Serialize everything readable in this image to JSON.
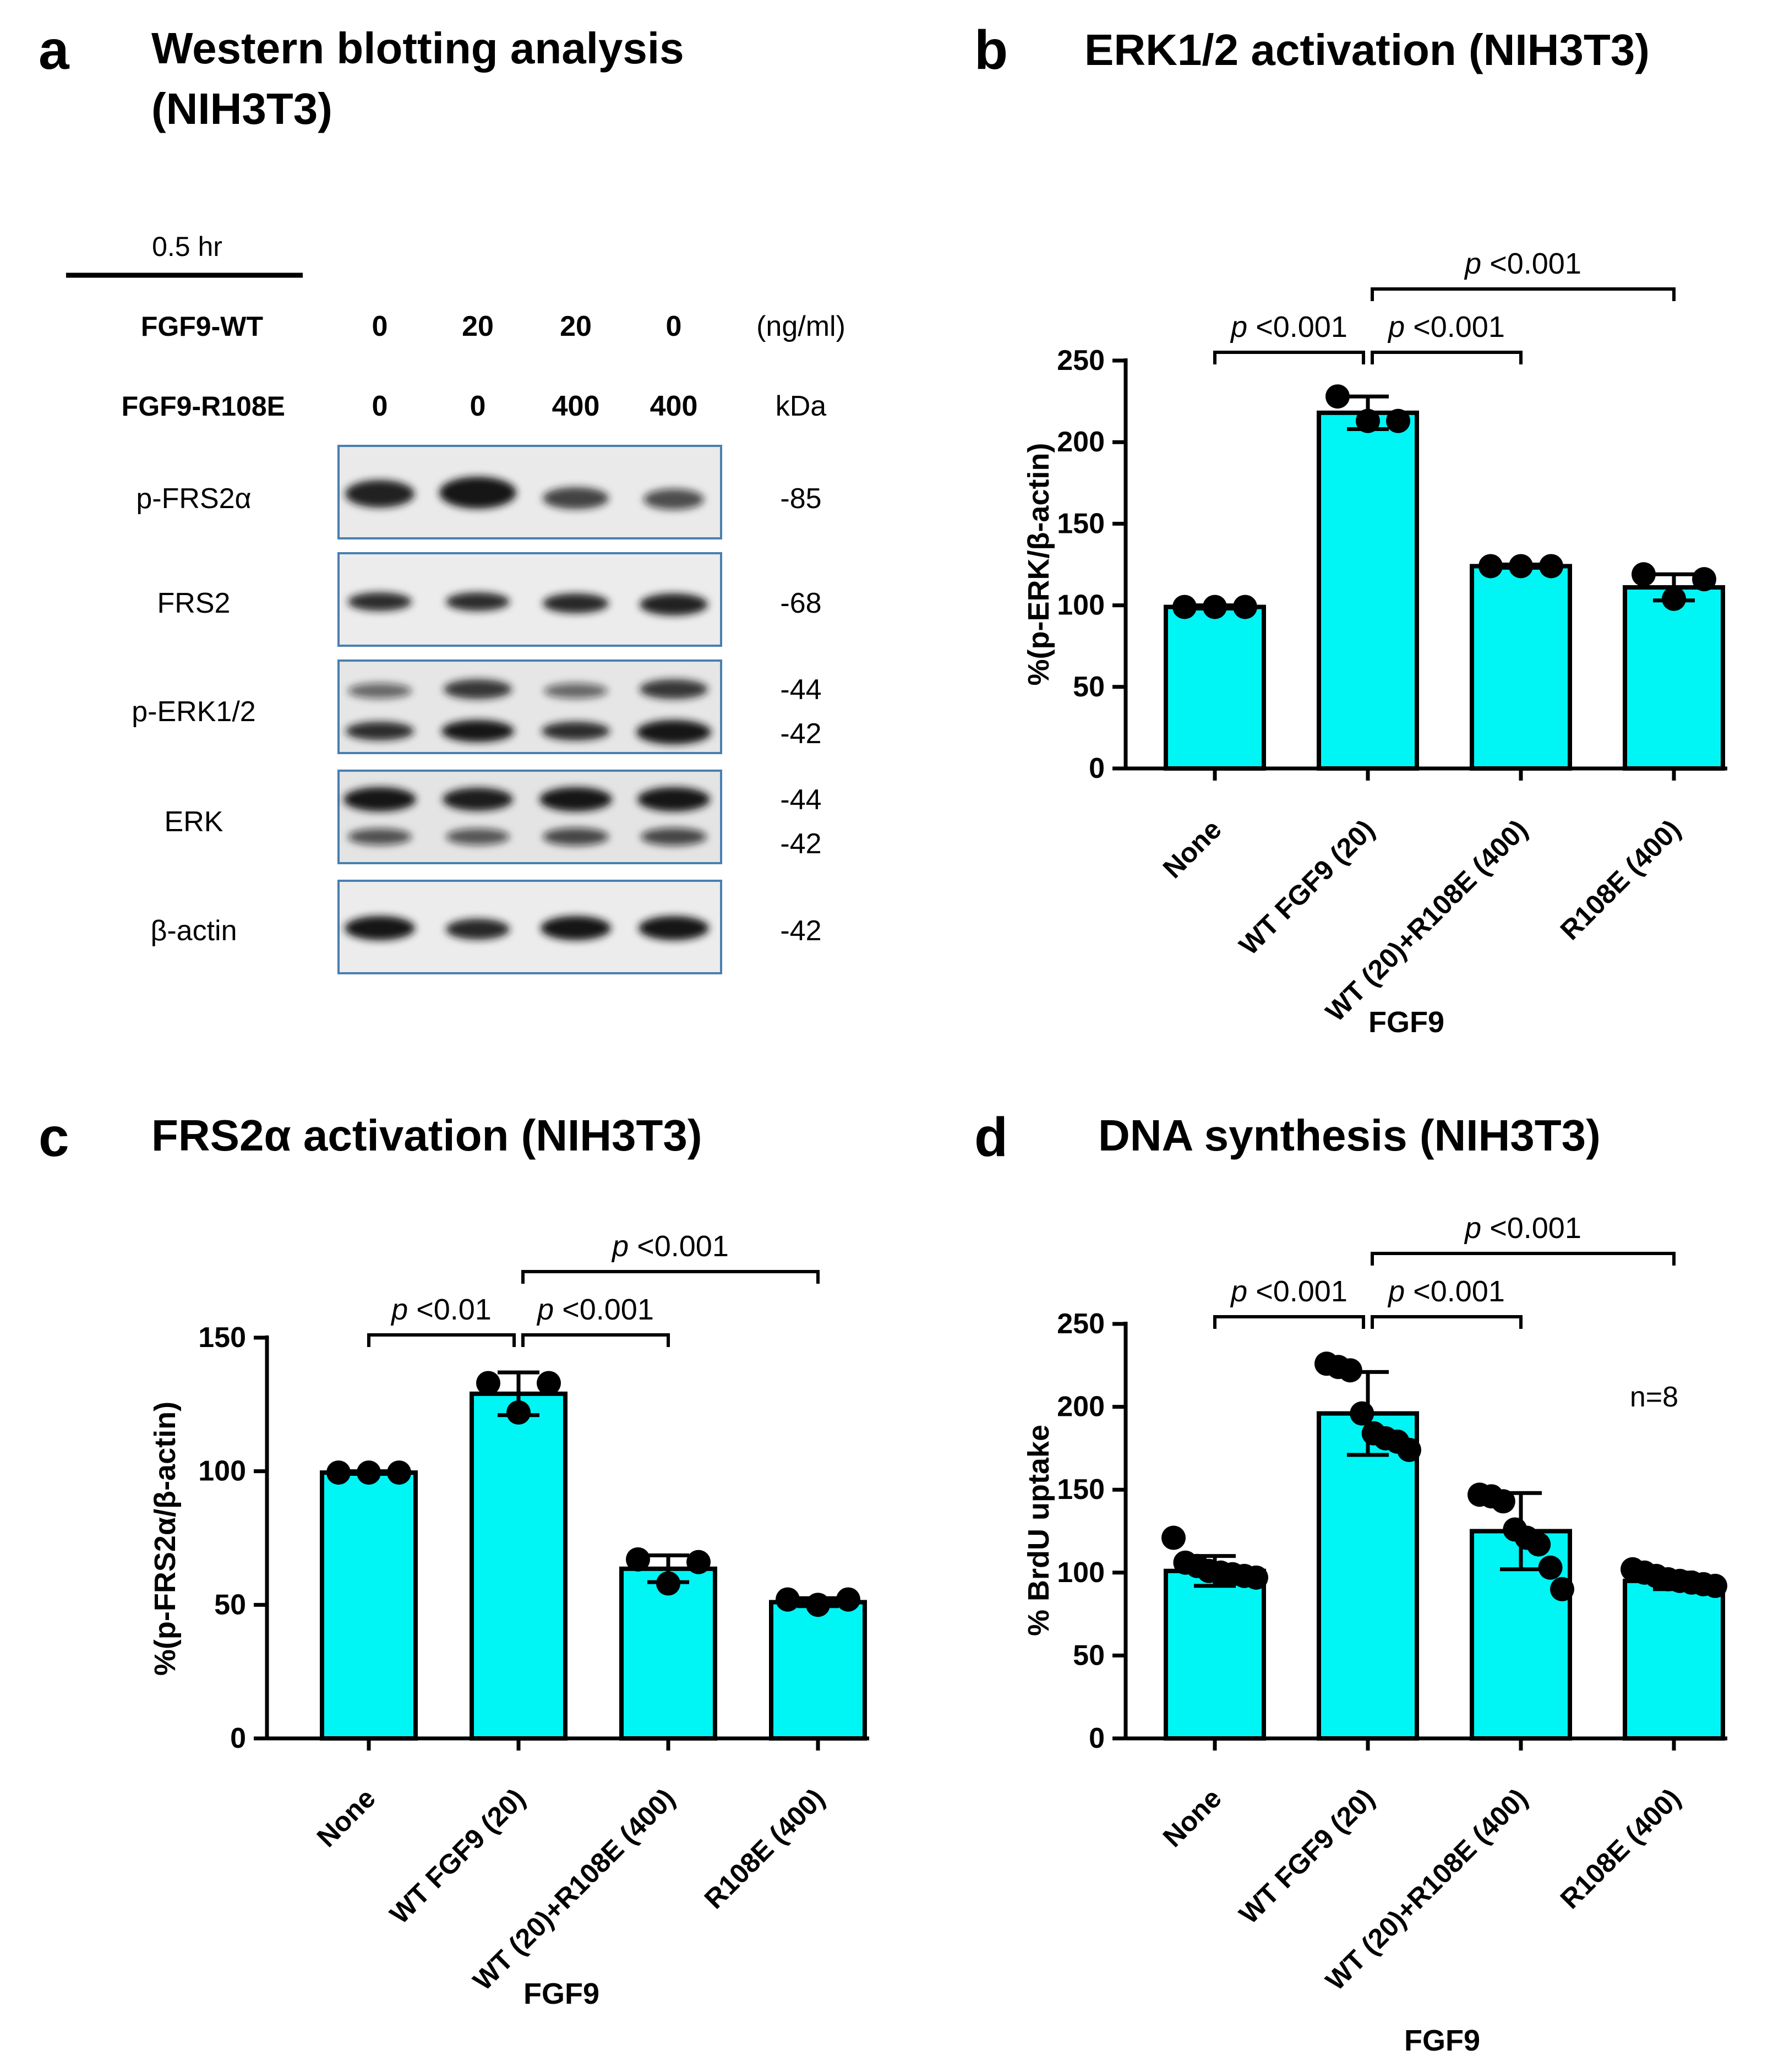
{
  "panels": {
    "a": {
      "letter": "a",
      "title_line1": "Western blotting analysis",
      "title_line2": "(NIH3T3)",
      "time_label": "0.5 hr",
      "row1_label": "FGF9-WT",
      "row1_values": [
        "0",
        "20",
        "20",
        "0"
      ],
      "row1_unit": "(ng/ml)",
      "row2_label": "FGF9-R108E",
      "row2_values": [
        "0",
        "0",
        "400",
        "400"
      ],
      "row2_unit": "kDa",
      "blots": [
        {
          "label": "p-FRS2α",
          "kda": [
            "-85"
          ]
        },
        {
          "label": "FRS2",
          "kda": [
            "-68"
          ]
        },
        {
          "label": "p-ERK1/2",
          "kda": [
            "-44",
            "-42"
          ]
        },
        {
          "label": "ERK",
          "kda": [
            "-44",
            "-42"
          ]
        },
        {
          "label": "β-actin",
          "kda": [
            "-42"
          ]
        }
      ],
      "colors": {
        "blot_border": "#4a7fb0",
        "band": "#151515"
      }
    },
    "b": {
      "letter": "b"
    },
    "c": {
      "letter": "c"
    },
    "d": {
      "letter": "d",
      "annotation": "n=8"
    }
  },
  "chart_data": [
    {
      "panel": "b",
      "type": "bar",
      "title": "ERK1/2 activation (NIH3T3)",
      "xlabel": "FGF9",
      "ylabel": "%(p-ERK/β-actin)",
      "categories": [
        "None",
        "WT FGF9 (20)",
        "WT (20)+R108E (400)",
        "R108E (400)"
      ],
      "values": [
        99,
        218,
        124,
        111
      ],
      "error": [
        1,
        10,
        1,
        8
      ],
      "points": [
        [
          99,
          99,
          99
        ],
        [
          228,
          213,
          213
        ],
        [
          124,
          124,
          124
        ],
        [
          119,
          104,
          116
        ]
      ],
      "yticks": [
        0,
        50,
        100,
        150,
        200,
        250
      ],
      "ylim": [
        0,
        250
      ],
      "significance": [
        {
          "from": 0,
          "to": 1,
          "label_p": "p",
          "label_rest": " <0.001",
          "level": 0
        },
        {
          "from": 1,
          "to": 2,
          "label_p": "p",
          "label_rest": " <0.001",
          "level": 0
        },
        {
          "from": 1,
          "to": 3,
          "label_p": "p",
          "label_rest": " <0.001",
          "level": 1
        }
      ],
      "colors": {
        "bar": "#00f5f5",
        "edge": "#000000",
        "point": "#000000"
      }
    },
    {
      "panel": "c",
      "type": "bar",
      "title": "FRS2α activation (NIH3T3)",
      "xlabel": "FGF9",
      "ylabel": "%(p-FRS2α/β-actin)",
      "categories": [
        "None",
        "WT FGF9 (20)",
        "WT (20)+R108E (400)",
        "R108E (400)"
      ],
      "values": [
        99.5,
        129,
        63.5,
        51
      ],
      "error": [
        0.5,
        8,
        5,
        1.5
      ],
      "points": [
        [
          99.5,
          99.5,
          99.5
        ],
        [
          133,
          122,
          133
        ],
        [
          67,
          58,
          66
        ],
        [
          52,
          50,
          52
        ]
      ],
      "yticks": [
        0,
        50,
        100,
        150
      ],
      "ylim": [
        0,
        150
      ],
      "significance": [
        {
          "from": 0,
          "to": 1,
          "label_p": "p",
          "label_rest": " <0.01",
          "level": 0
        },
        {
          "from": 1,
          "to": 2,
          "label_p": "p",
          "label_rest": " <0.001",
          "level": 0
        },
        {
          "from": 1,
          "to": 3,
          "label_p": "p",
          "label_rest": " <0.001",
          "level": 1
        }
      ],
      "colors": {
        "bar": "#00f5f5",
        "edge": "#000000",
        "point": "#000000"
      }
    },
    {
      "panel": "d",
      "type": "bar",
      "title": "DNA synthesis (NIH3T3)",
      "xlabel": "FGF9",
      "ylabel": "% BrdU uptake",
      "categories": [
        "None",
        "WT FGF9 (20)",
        "WT (20)+R108E (400)",
        "R108E (400)"
      ],
      "values": [
        101,
        196,
        125,
        95
      ],
      "error": [
        9,
        25,
        23,
        5
      ],
      "points": [
        [
          121,
          106,
          104,
          101,
          100,
          99,
          98,
          97
        ],
        [
          226,
          224,
          222,
          196,
          184,
          181,
          179,
          174
        ],
        [
          147,
          146,
          143,
          126,
          121,
          117,
          103,
          90
        ],
        [
          102,
          100,
          98,
          96,
          95,
          94,
          93,
          92
        ]
      ],
      "yticks": [
        0,
        50,
        100,
        150,
        200,
        250
      ],
      "ylim": [
        0,
        250
      ],
      "significance": [
        {
          "from": 0,
          "to": 1,
          "label_p": "p",
          "label_rest": " <0.001",
          "level": 0
        },
        {
          "from": 1,
          "to": 2,
          "label_p": "p",
          "label_rest": " <0.001",
          "level": 0
        },
        {
          "from": 1,
          "to": 3,
          "label_p": "p",
          "label_rest": " <0.001",
          "level": 1
        }
      ],
      "colors": {
        "bar": "#00f5f5",
        "edge": "#000000",
        "point": "#000000"
      }
    }
  ]
}
